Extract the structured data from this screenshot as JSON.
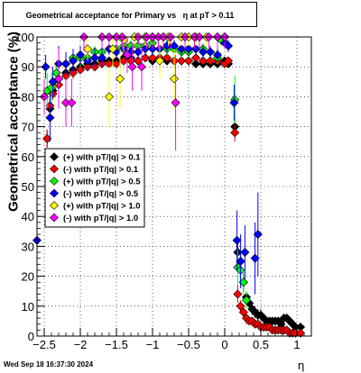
{
  "chart_data": {
    "type": "scatter",
    "title": "Geometrical acceptance for Primary vs   η at pT > 0.11",
    "ylabel": "Geometrical acceptance (%)",
    "xlabel": "η",
    "timestamp": "Wed Sep 18 16:37:30 2024",
    "xlim": [
      -2.6,
      1.2
    ],
    "ylim": [
      0,
      100
    ],
    "x_ticks": [
      -2.5,
      -2,
      -1.5,
      -1,
      -0.5,
      0,
      0.5,
      1
    ],
    "x_tick_labels": [
      "−2.5",
      "−2",
      "−1.5",
      "−1",
      "−0.5",
      "0",
      "0.5",
      "1"
    ],
    "y_ticks": [
      0,
      10,
      20,
      30,
      40,
      50,
      60,
      70,
      80,
      90,
      100
    ],
    "y_tick_labels": [
      "0",
      "10",
      "20",
      "30",
      "40",
      "50",
      "60",
      "70",
      "80",
      "90",
      "100"
    ],
    "grid": true,
    "legend_position": "left-middle",
    "series": [
      {
        "name": "(+) with pT/|q| > 0.1",
        "color": "#000000",
        "x": [
          -2.46,
          -2.42,
          -2.38,
          -2.3,
          -2.2,
          -2.1,
          -2.0,
          -1.9,
          -1.8,
          -1.7,
          -1.6,
          -1.5,
          -1.4,
          -1.3,
          -1.2,
          -1.1,
          -1.0,
          -0.9,
          -0.8,
          -0.7,
          -0.6,
          -0.5,
          -0.4,
          -0.3,
          -0.2,
          -0.1,
          0.0,
          0.05,
          0.14,
          0.18,
          0.22,
          0.26,
          0.3,
          0.34,
          0.38,
          0.42,
          0.46,
          0.5,
          0.54,
          0.58,
          0.62,
          0.66,
          0.7,
          0.74,
          0.78,
          0.82,
          0.86,
          0.9,
          0.94,
          0.98,
          1.05
        ],
        "y": [
          66,
          76,
          82,
          86,
          88,
          89,
          90,
          91,
          91,
          92,
          92,
          92,
          93,
          93,
          92,
          93,
          92,
          93,
          92,
          92,
          92,
          92,
          91,
          91,
          91,
          91,
          92,
          91,
          70,
          28,
          25,
          18,
          13,
          11,
          9,
          8,
          7,
          7,
          6,
          5,
          5,
          5,
          5,
          5,
          4,
          6,
          6,
          5,
          4,
          3,
          3
        ],
        "err": [
          3,
          3,
          2,
          2,
          2,
          2,
          1,
          1,
          1,
          1,
          1,
          1,
          1,
          1,
          1,
          1,
          1,
          1,
          1,
          1,
          1,
          1,
          1,
          1,
          1,
          1,
          1,
          1,
          3,
          4,
          3,
          3,
          2,
          2,
          2,
          2,
          2,
          2,
          1,
          1,
          1,
          1,
          1,
          1,
          1,
          1,
          1,
          1,
          1,
          1,
          1
        ]
      },
      {
        "name": "(-) with pT/|q| > 0.1",
        "color": "#ff0000",
        "x": [
          -2.46,
          -2.42,
          -2.38,
          -2.3,
          -2.2,
          -2.1,
          -2.0,
          -1.9,
          -1.8,
          -1.7,
          -1.6,
          -1.5,
          -1.4,
          -1.3,
          -1.2,
          -1.1,
          -1.0,
          -0.9,
          -0.8,
          -0.7,
          -0.6,
          -0.5,
          -0.4,
          -0.3,
          -0.2,
          -0.1,
          0.0,
          0.05,
          0.14,
          0.18,
          0.22,
          0.26,
          0.3,
          0.34,
          0.38,
          0.42,
          0.46,
          0.5,
          0.54,
          0.58,
          0.62,
          0.66,
          0.7,
          0.74,
          0.78,
          0.82,
          0.86,
          0.9,
          0.94,
          0.98,
          1.05
        ],
        "y": [
          66,
          77,
          81,
          84,
          87,
          88,
          89,
          90,
          90,
          91,
          91,
          91,
          92,
          92,
          92,
          93,
          93,
          93,
          93,
          92,
          92,
          92,
          93,
          92,
          92,
          92,
          91,
          92,
          68,
          14,
          10,
          8,
          6,
          5,
          5,
          4,
          4,
          3,
          3,
          3,
          3,
          2,
          2,
          2,
          2,
          2,
          2,
          1,
          1,
          1,
          1
        ],
        "err": [
          3,
          3,
          2,
          2,
          2,
          2,
          1,
          1,
          1,
          1,
          1,
          1,
          1,
          1,
          1,
          1,
          1,
          1,
          1,
          1,
          1,
          1,
          1,
          1,
          1,
          1,
          1,
          1,
          3,
          3,
          2,
          2,
          2,
          1,
          1,
          1,
          1,
          1,
          1,
          1,
          1,
          1,
          1,
          1,
          1,
          1,
          1,
          1,
          1,
          1,
          1
        ]
      },
      {
        "name": "(+) with pT/|q| > 0.5",
        "color": "#00ff00",
        "x": [
          -2.46,
          -2.4,
          -2.33,
          -2.2,
          -2.1,
          -2.0,
          -1.9,
          -1.8,
          -1.7,
          -1.6,
          -1.5,
          -1.4,
          -1.3,
          -1.2,
          -1.1,
          -1.0,
          -0.9,
          -0.8,
          -0.7,
          -0.6,
          -0.5,
          -0.4,
          -0.3,
          -0.2,
          -0.1,
          -0.05,
          0.0,
          0.14,
          0.18,
          0.22,
          0.26,
          0.3
        ],
        "y": [
          82,
          83,
          88,
          91,
          93,
          93,
          93,
          95,
          95,
          96,
          96,
          97,
          97,
          97,
          97,
          98,
          96,
          96,
          96,
          95,
          95,
          96,
          96,
          95,
          93,
          99,
          100,
          79,
          23,
          22,
          18,
          12
        ],
        "err": [
          6,
          5,
          4,
          3,
          3,
          3,
          3,
          2,
          2,
          2,
          2,
          2,
          2,
          2,
          2,
          2,
          2,
          2,
          2,
          2,
          2,
          2,
          2,
          2,
          2,
          2,
          2,
          8,
          6,
          5,
          4,
          3
        ]
      },
      {
        "name": "(-) with pT/|q| > 0.5",
        "color": "#0000ff",
        "x": [
          -2.6,
          -2.48,
          -2.42,
          -2.38,
          -2.3,
          -2.2,
          -2.1,
          -2.0,
          -1.9,
          -1.8,
          -1.7,
          -1.6,
          -1.5,
          -1.4,
          -1.3,
          -1.2,
          -1.1,
          -1.0,
          -0.9,
          -0.8,
          -0.7,
          -0.6,
          -0.5,
          -0.4,
          -0.3,
          -0.2,
          -0.1,
          0.0,
          0.05,
          0.13,
          0.17,
          0.22,
          0.28,
          0.42,
          0.46
        ],
        "y": [
          32,
          90,
          73,
          85,
          91,
          91,
          92,
          94,
          92,
          93,
          93,
          96,
          95,
          96,
          95,
          95,
          96,
          96,
          96,
          97,
          97,
          96,
          96,
          96,
          95,
          95,
          94,
          98,
          97,
          78,
          32,
          25,
          28,
          26,
          34
        ],
        "err": [
          12,
          4,
          8,
          5,
          6,
          4,
          4,
          3,
          3,
          3,
          3,
          2,
          2,
          2,
          2,
          2,
          2,
          2,
          2,
          2,
          2,
          2,
          2,
          2,
          2,
          2,
          2,
          2,
          2,
          6,
          10,
          9,
          9,
          12,
          14
        ]
      },
      {
        "name": "(+) with pT/|q| > 1.0",
        "color": "#ffff00",
        "x": [
          -1.9,
          -1.6,
          -1.55,
          -1.5,
          -1.45,
          -1.4,
          -1.25,
          -1.1,
          -1.0,
          -0.9,
          -0.85,
          -0.78,
          -0.7,
          -0.6,
          -0.5,
          -0.4,
          -0.25,
          -0.1
        ],
        "y": [
          96,
          80,
          96,
          100,
          86,
          99,
          100,
          100,
          100,
          92,
          100,
          100,
          86,
          100,
          100,
          100,
          100,
          100
        ],
        "err": [
          4,
          10,
          6,
          4,
          10,
          4,
          3,
          3,
          3,
          6,
          3,
          3,
          10,
          3,
          3,
          3,
          3,
          3
        ]
      },
      {
        "name": "(-) with pT/|q| > 1.0",
        "color": "#ff00ff",
        "x": [
          -2.5,
          -2.3,
          -2.2,
          -2.12,
          -1.95,
          -1.7,
          -1.6,
          -1.5,
          -1.42,
          -1.35,
          -1.28,
          -1.2,
          -1.15,
          -1.08,
          -1.0,
          -0.92,
          -0.85,
          -0.75,
          -0.68,
          -0.55,
          -0.42,
          -0.35,
          -0.22,
          -0.1,
          0.0
        ],
        "y": [
          80,
          86,
          78,
          78,
          100,
          100,
          100,
          100,
          100,
          94,
          90,
          100,
          90,
          100,
          100,
          100,
          100,
          100,
          78,
          100,
          100,
          100,
          100,
          100,
          100
        ],
        "err": [
          6,
          10,
          8,
          8,
          5,
          4,
          4,
          4,
          4,
          6,
          8,
          4,
          8,
          4,
          4,
          4,
          4,
          4,
          16,
          4,
          4,
          4,
          4,
          4,
          4
        ]
      }
    ]
  }
}
